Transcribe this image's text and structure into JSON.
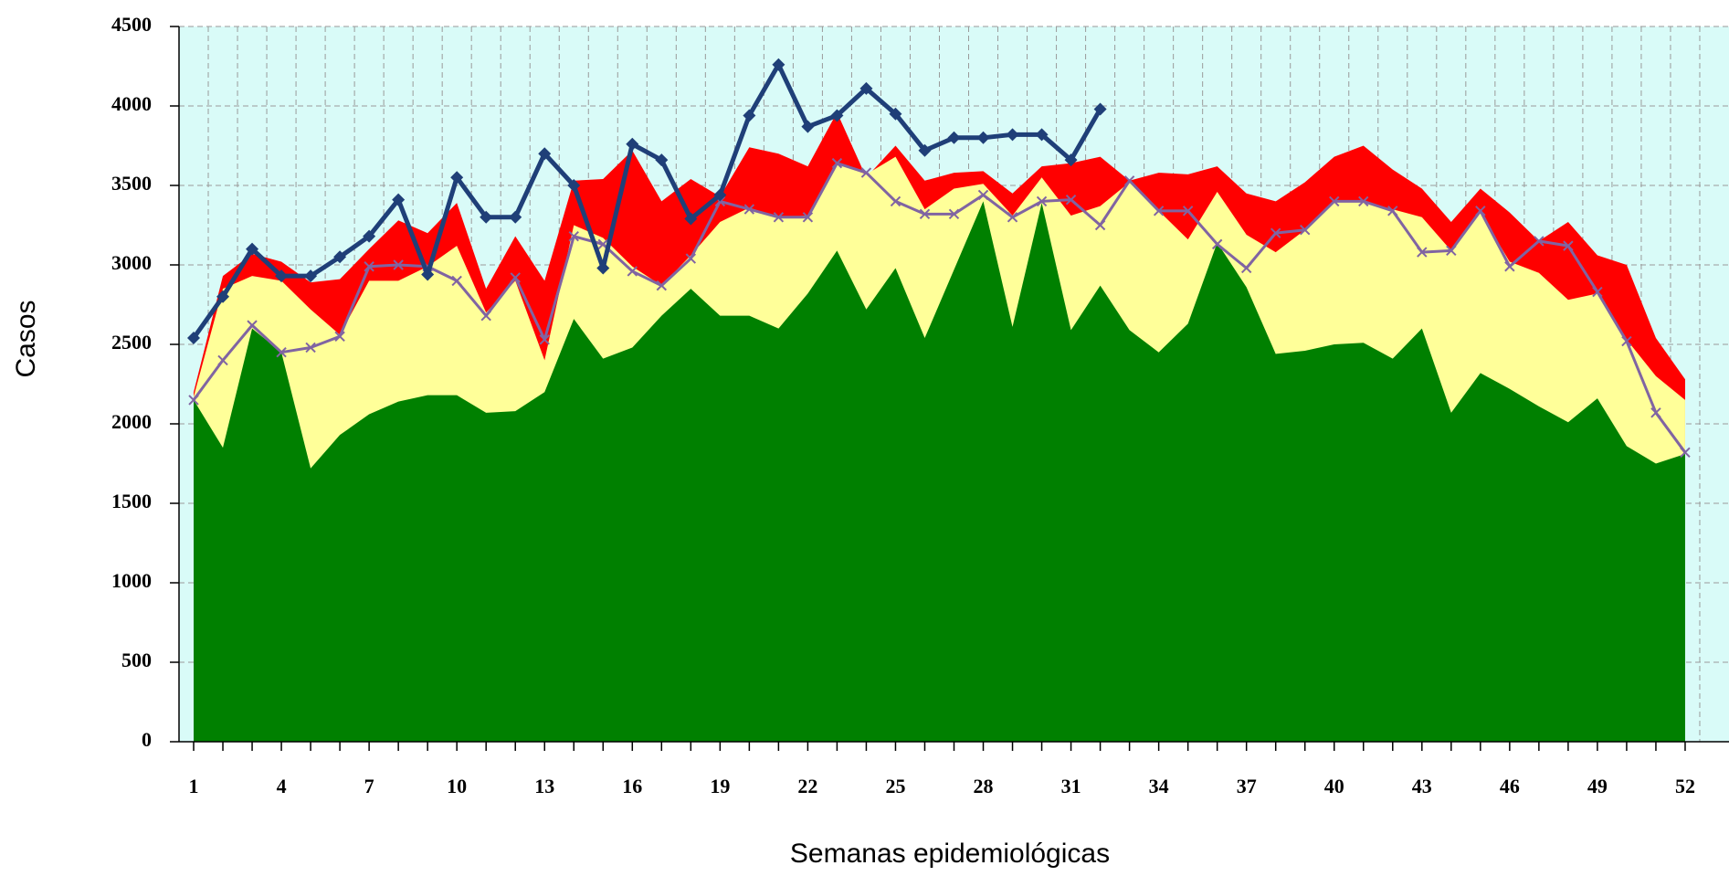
{
  "chart_data": {
    "type": "area",
    "xlabel": "Semanas epidemiológicas",
    "ylabel": "Casos",
    "x": [
      1,
      2,
      3,
      4,
      5,
      6,
      7,
      8,
      9,
      10,
      11,
      12,
      13,
      14,
      15,
      16,
      17,
      18,
      19,
      20,
      21,
      22,
      23,
      24,
      25,
      26,
      27,
      28,
      29,
      30,
      31,
      32,
      33,
      34,
      35,
      36,
      37,
      38,
      39,
      40,
      41,
      42,
      43,
      44,
      45,
      46,
      47,
      48,
      49,
      50,
      51,
      52
    ],
    "xlim": [
      0.5,
      53.5
    ],
    "xticks": [
      1,
      4,
      7,
      10,
      13,
      16,
      19,
      22,
      25,
      28,
      31,
      34,
      37,
      40,
      43,
      46,
      49,
      52
    ],
    "ylim": [
      0,
      4500
    ],
    "yticks": [
      0,
      500,
      1000,
      1500,
      2000,
      2500,
      3000,
      3500,
      4000,
      4500
    ],
    "grid": true,
    "plot_background": "#d9fbf8",
    "series": [
      {
        "type": "area",
        "color": "#ff0000",
        "values": [
          2200,
          2930,
          3070,
          3020,
          2890,
          2910,
          3100,
          3280,
          3200,
          3390,
          2850,
          3180,
          2900,
          3530,
          3540,
          3720,
          3400,
          3540,
          3430,
          3740,
          3700,
          3620,
          3960,
          3550,
          3750,
          3530,
          3580,
          3590,
          3450,
          3620,
          3640,
          3680,
          3530,
          3580,
          3570,
          3620,
          3450,
          3400,
          3520,
          3680,
          3750,
          3600,
          3480,
          3270,
          3480,
          3330,
          3150,
          3270,
          3060,
          3000,
          2540,
          2280
        ]
      },
      {
        "type": "area",
        "color": "#ffff99",
        "values": [
          2170,
          2850,
          2930,
          2900,
          2720,
          2560,
          2900,
          2900,
          2990,
          3120,
          2700,
          2900,
          2400,
          3250,
          3170,
          2990,
          2870,
          3060,
          3270,
          3360,
          3300,
          3310,
          3640,
          3570,
          3680,
          3350,
          3480,
          3510,
          3310,
          3550,
          3310,
          3370,
          3520,
          3340,
          3160,
          3460,
          3190,
          3080,
          3220,
          3400,
          3400,
          3350,
          3300,
          3090,
          3330,
          3020,
          2950,
          2780,
          2820,
          2530,
          2300,
          2150
        ]
      },
      {
        "type": "area",
        "color": "#008000",
        "values": [
          2150,
          1850,
          2600,
          2450,
          1720,
          1930,
          2060,
          2140,
          2180,
          2180,
          2070,
          2080,
          2200,
          2660,
          2410,
          2480,
          2680,
          2850,
          2680,
          2680,
          2600,
          2820,
          3090,
          2720,
          2980,
          2540,
          2970,
          3400,
          2610,
          3390,
          2590,
          2870,
          2590,
          2450,
          2630,
          3140,
          2860,
          2440,
          2460,
          2500,
          2510,
          2410,
          2600,
          2070,
          2320,
          2220,
          2110,
          2010,
          2160,
          1860,
          1750,
          1810
        ]
      },
      {
        "type": "line",
        "marker": "x",
        "color": "#8064a2",
        "values": [
          2150,
          2400,
          2620,
          2450,
          2480,
          2550,
          2990,
          3000,
          2990,
          2900,
          2680,
          2920,
          2530,
          3180,
          3130,
          2960,
          2870,
          3040,
          3400,
          3350,
          3300,
          3300,
          3640,
          3580,
          3400,
          3320,
          3320,
          3440,
          3300,
          3400,
          3410,
          3250,
          3530,
          3340,
          3340,
          3130,
          2980,
          3200,
          3220,
          3400,
          3400,
          3340,
          3080,
          3090,
          3340,
          2990,
          3150,
          3120,
          2830,
          2520,
          2070,
          1820
        ]
      },
      {
        "type": "line",
        "marker": "diamond",
        "color": "#1f3f78",
        "values": [
          2540,
          2800,
          3100,
          2930,
          2930,
          3050,
          3180,
          3410,
          2940,
          3550,
          3300,
          3300,
          3700,
          3500,
          2980,
          3760,
          3660,
          3290,
          3440,
          3940,
          4260,
          3870,
          3940,
          4110,
          3950,
          3720,
          3800,
          3800,
          3820,
          3820,
          3660,
          3980,
          null,
          null,
          null,
          null,
          null,
          null,
          null,
          null,
          null,
          null,
          null,
          null,
          null,
          null,
          null,
          null,
          null,
          null,
          null,
          null
        ]
      }
    ]
  }
}
